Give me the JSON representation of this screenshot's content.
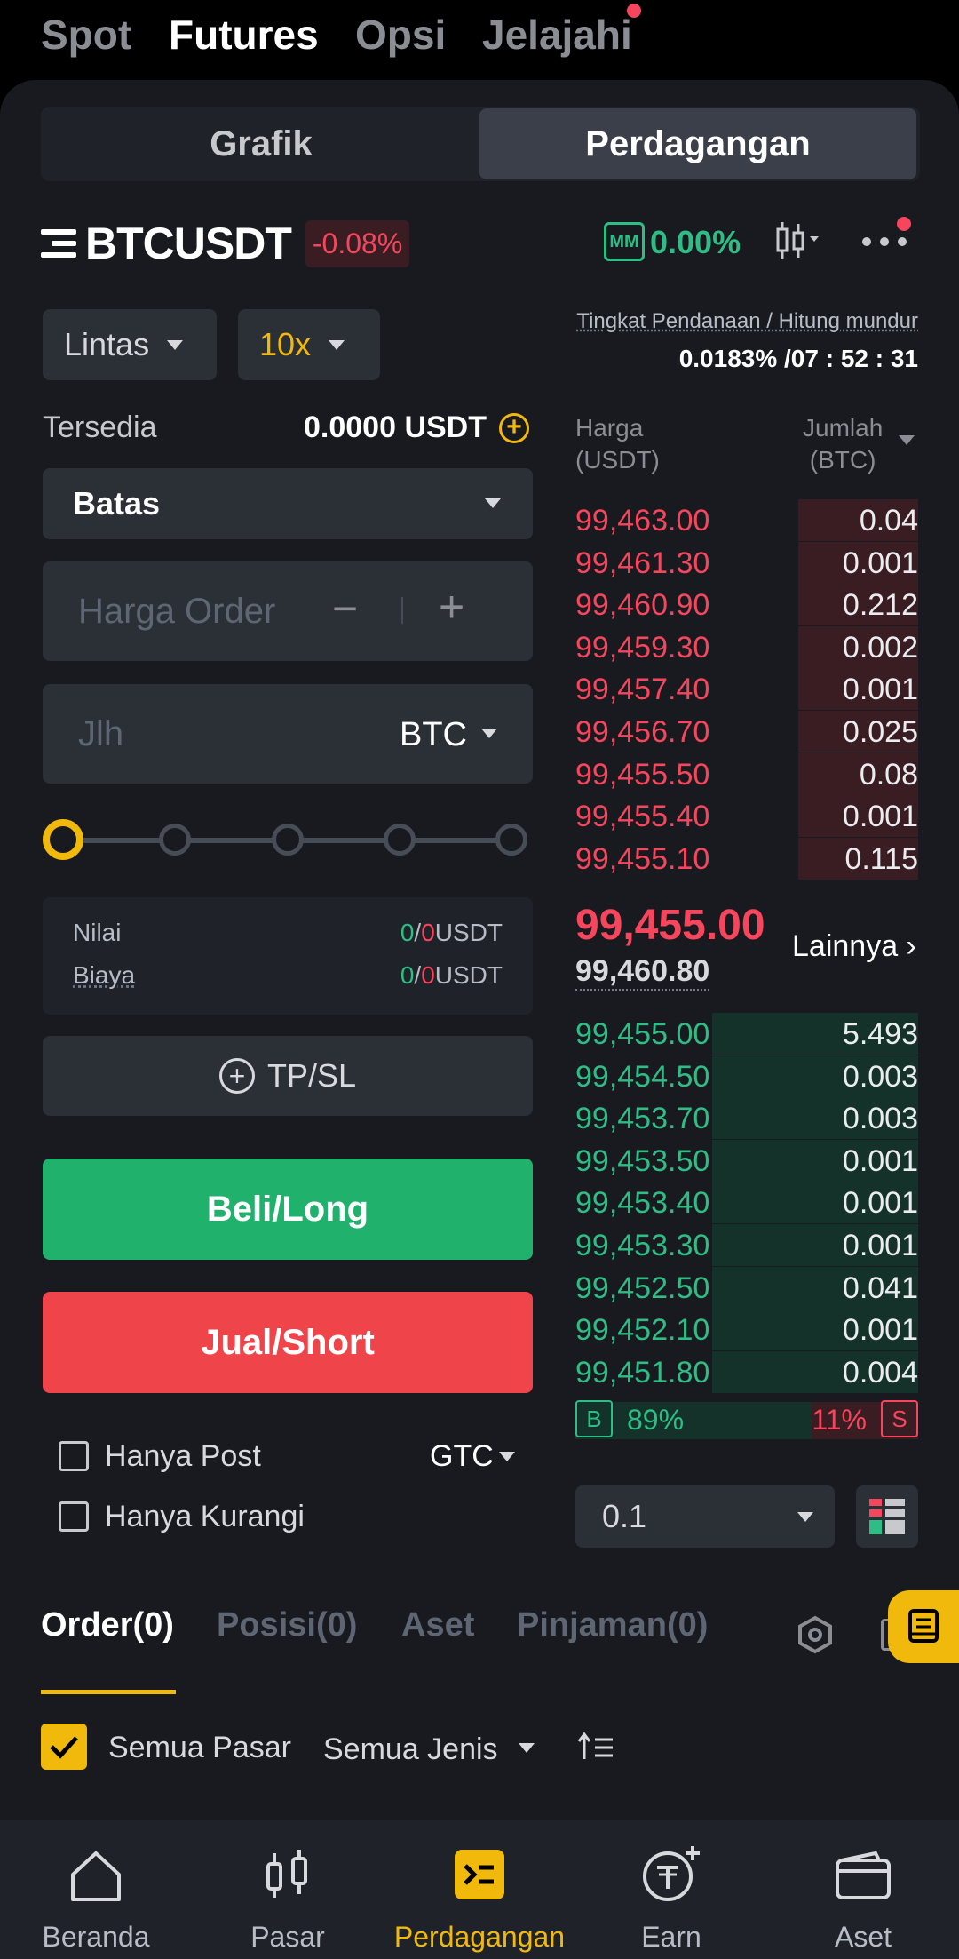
{
  "top_tabs": [
    "Spot",
    "Futures",
    "Opsi",
    "Jelajahi"
  ],
  "segment": {
    "chart": "Grafik",
    "trade": "Perdagangan"
  },
  "symbol": {
    "name": "BTCUSDT",
    "change": "-0.08%",
    "mm_label": "MM",
    "mm_value": "0.00%"
  },
  "order_form": {
    "margin_mode": "Lintas",
    "leverage": "10x",
    "available_label": "Tersedia",
    "available_value": "0.0000 USDT",
    "order_type": "Batas",
    "price_placeholder": "Harga Order",
    "amount_placeholder": "Jlh",
    "amount_unit": "BTC",
    "value_label": "Nilai",
    "fee_label": "Biaya",
    "value_left": "0",
    "value_right": "0",
    "unit": "USDT",
    "tpsl": "TP/SL",
    "buy": "Beli/Long",
    "sell": "Jual/Short",
    "post_only": "Hanya Post",
    "reduce_only": "Hanya Kurangi",
    "tif": "GTC"
  },
  "funding": {
    "label": "Tingkat Pendanaan / Hitung mundur",
    "value": "0.0183% /07 : 52 : 31"
  },
  "orderbook": {
    "price_header": "Harga\n(USDT)",
    "price_h1": "Harga",
    "price_h2": "(USDT)",
    "qty_h1": "Jumlah",
    "qty_h2": "(BTC)",
    "asks": [
      {
        "price": "99,463.00",
        "qty": "0.04",
        "depth": 0.35
      },
      {
        "price": "99,461.30",
        "qty": "0.001",
        "depth": 0.35
      },
      {
        "price": "99,460.90",
        "qty": "0.212",
        "depth": 0.35
      },
      {
        "price": "99,459.30",
        "qty": "0.002",
        "depth": 0.35
      },
      {
        "price": "99,457.40",
        "qty": "0.001",
        "depth": 0.35
      },
      {
        "price": "99,456.70",
        "qty": "0.025",
        "depth": 0.35
      },
      {
        "price": "99,455.50",
        "qty": "0.08",
        "depth": 0.35
      },
      {
        "price": "99,455.40",
        "qty": "0.001",
        "depth": 0.35
      },
      {
        "price": "99,455.10",
        "qty": "0.115",
        "depth": 0.35
      }
    ],
    "last_price": "99,455.00",
    "mark_price": "99,460.80",
    "more": "Lainnya",
    "bids": [
      {
        "price": "99,455.00",
        "qty": "5.493",
        "depth": 0.6
      },
      {
        "price": "99,454.50",
        "qty": "0.003",
        "depth": 0.6
      },
      {
        "price": "99,453.70",
        "qty": "0.003",
        "depth": 0.6
      },
      {
        "price": "99,453.50",
        "qty": "0.001",
        "depth": 0.6
      },
      {
        "price": "99,453.40",
        "qty": "0.001",
        "depth": 0.6
      },
      {
        "price": "99,453.30",
        "qty": "0.001",
        "depth": 0.6
      },
      {
        "price": "99,452.50",
        "qty": "0.041",
        "depth": 0.6
      },
      {
        "price": "99,452.10",
        "qty": "0.001",
        "depth": 0.6
      },
      {
        "price": "99,451.80",
        "qty": "0.004",
        "depth": 0.6
      }
    ],
    "buy_label": "B",
    "buy_pct": "89%",
    "sell_pct": "11%",
    "sell_label": "S",
    "buy_ratio": 0.89,
    "precision": "0.1"
  },
  "bottom_tabs": [
    "Order(0)",
    "Posisi(0)",
    "Aset",
    "Pinjaman(0)"
  ],
  "filters": {
    "all_markets": "Semua Pasar",
    "all_types": "Semua Jenis"
  },
  "nav": [
    "Beranda",
    "Pasar",
    "Perdagangan",
    "Earn",
    "Aset"
  ],
  "colors": {
    "accent": "#f0b90b",
    "buy": "#2ebd85",
    "sell": "#f6465d"
  }
}
